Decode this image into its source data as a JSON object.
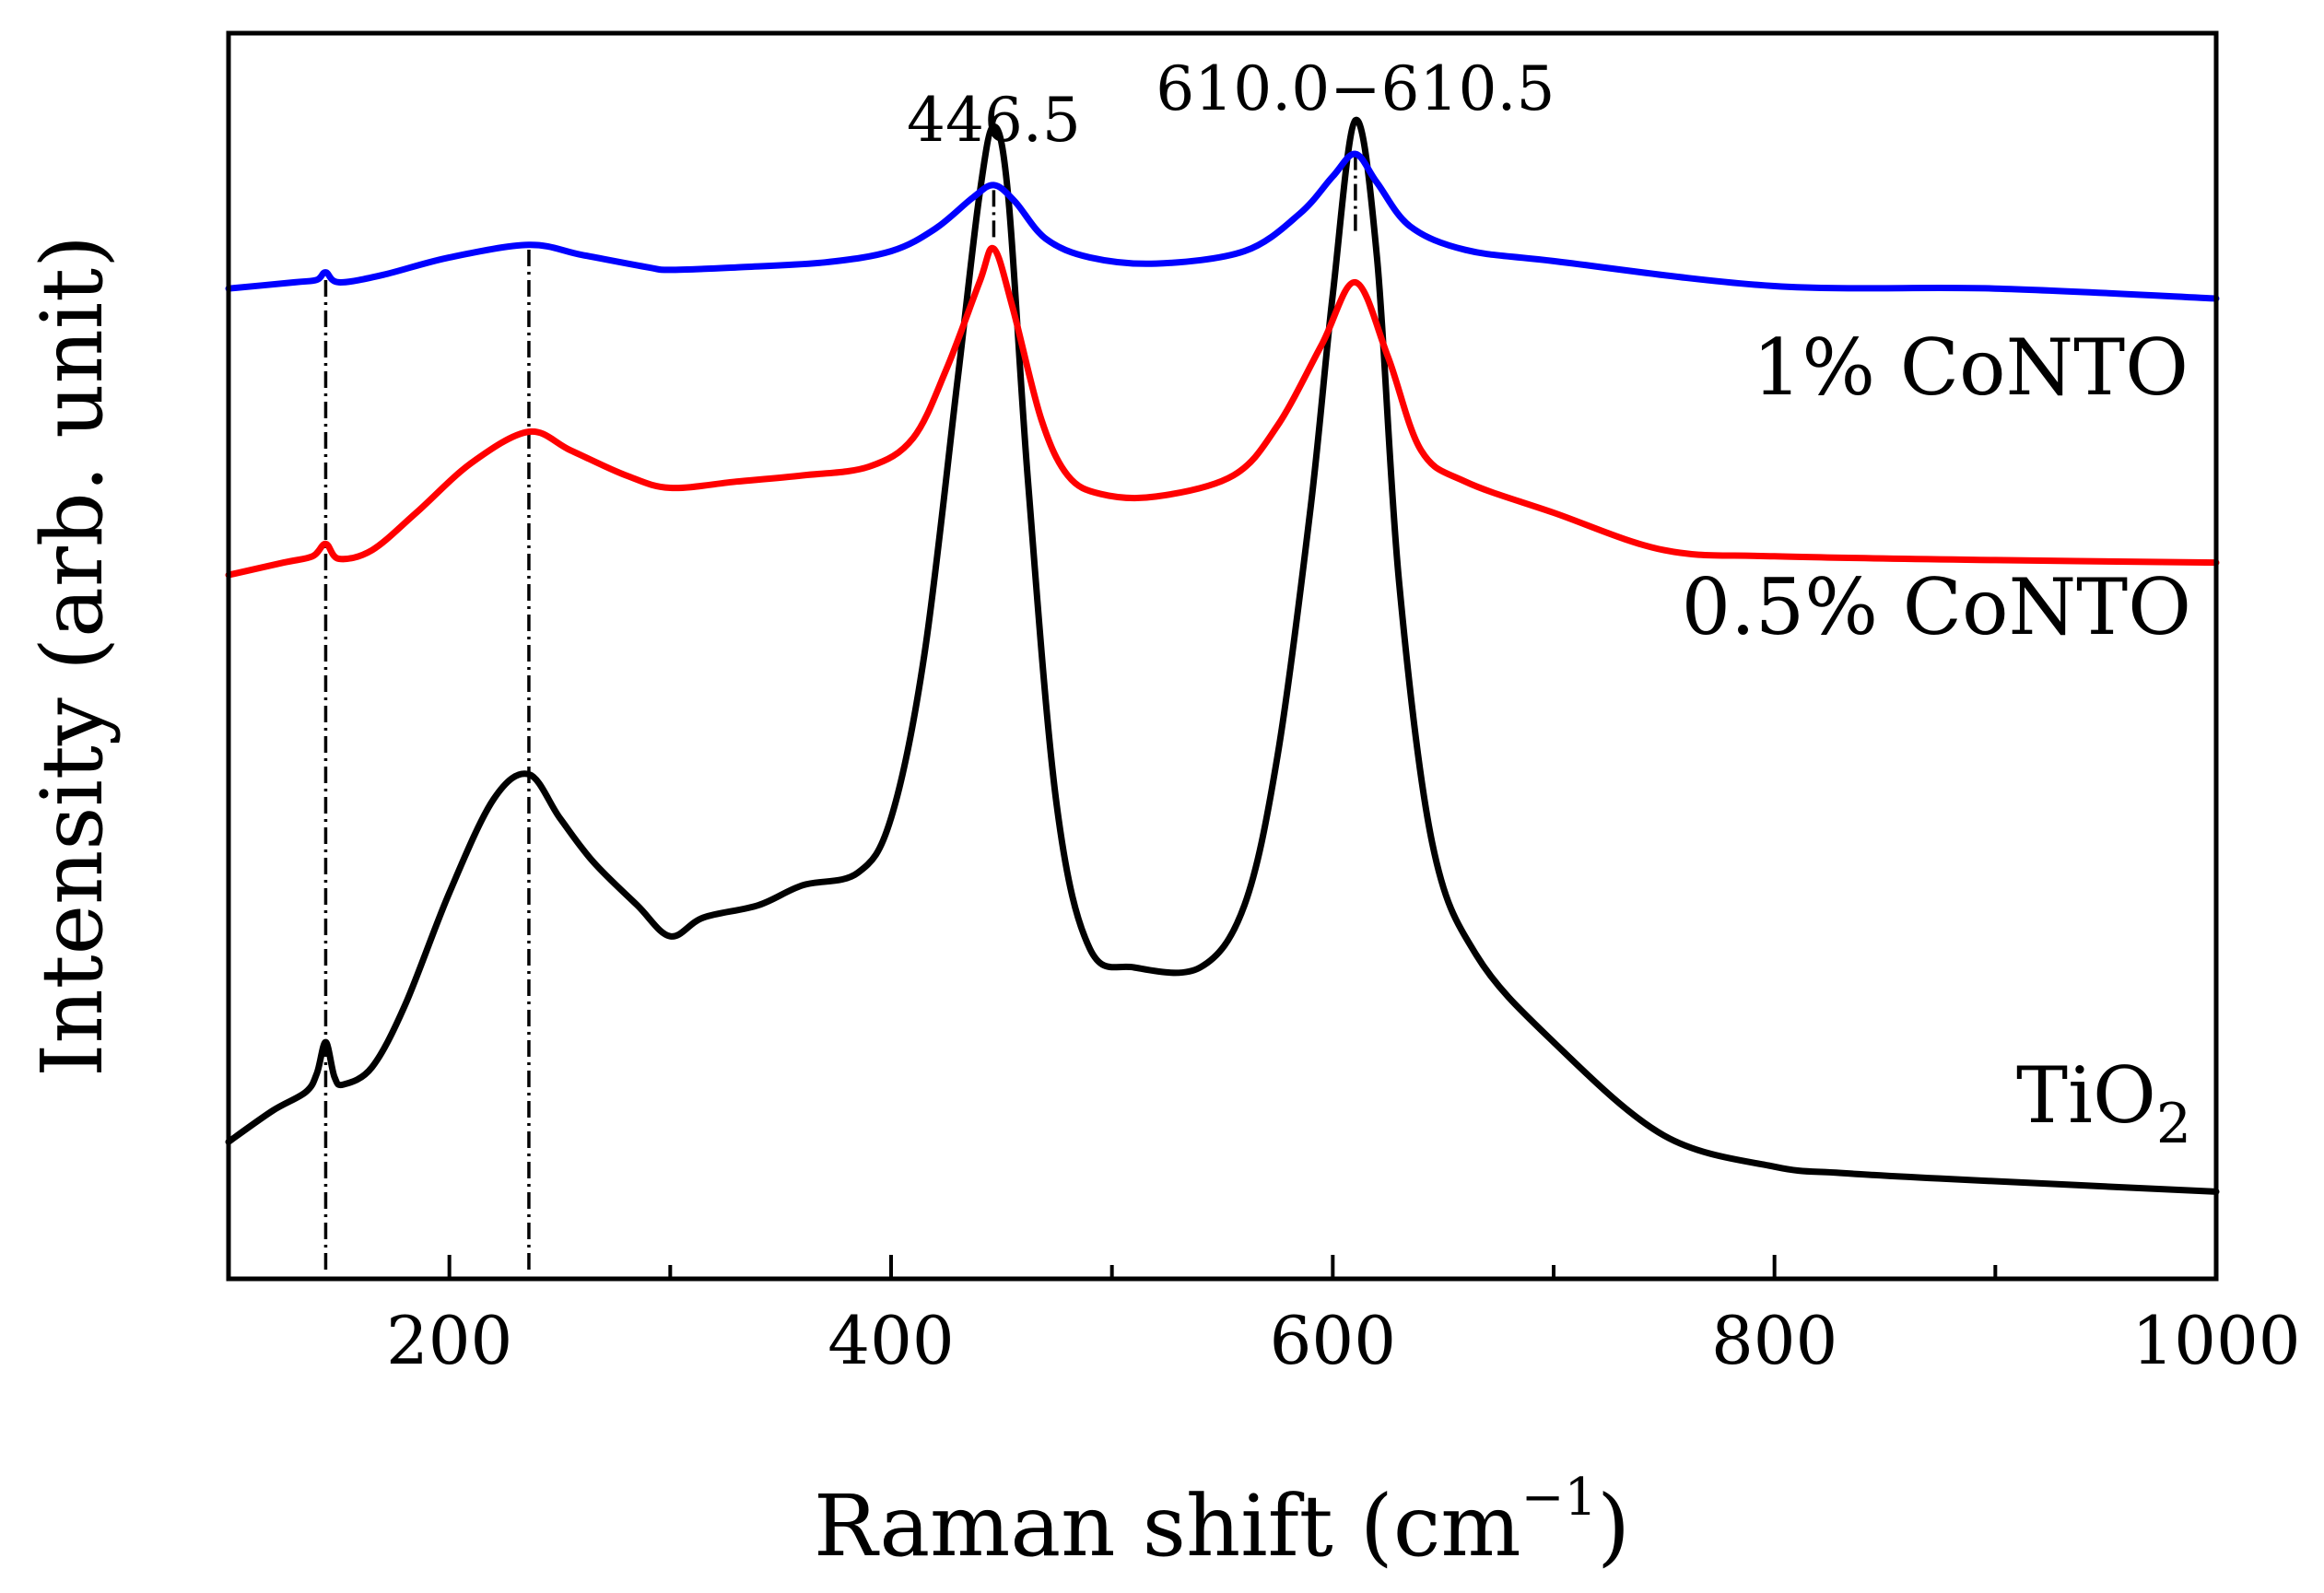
{
  "chart_data": {
    "type": "line",
    "title": "",
    "xlabel": "Raman shift (cm",
    "xlabel_sup": "−1",
    "xlabel_close": ")",
    "ylabel": "Intensity (arb. unit)",
    "xlim": [
      100,
      1000
    ],
    "ylim": [
      0,
      1
    ],
    "xticks": [
      200,
      400,
      600,
      800,
      1000
    ],
    "xtick_labels": [
      "200",
      "400",
      "600",
      "800",
      "1000"
    ],
    "minor_xticks": [
      300,
      500,
      700,
      900
    ],
    "grid": false,
    "y_ticklabels_shown": false,
    "annotations": [
      {
        "text": "446.5",
        "x": 446.5
      },
      {
        "text": "610.0−610.5",
        "x": 610.25
      }
    ],
    "reference_lines_x": [
      144,
      236,
      446.5,
      610.25
    ],
    "series": [
      {
        "name": "TiO2",
        "label_main": "TiO",
        "label_sub": "2",
        "color": "#000000",
        "x": [
          100,
          120,
          135,
          140,
          144,
          148,
          152,
          165,
          180,
          200,
          220,
          236,
          250,
          265,
          285,
          300,
          315,
          340,
          360,
          385,
          400,
          415,
          430,
          440,
          446.5,
          453,
          462,
          475,
          490,
          510,
          540,
          560,
          575,
          590,
          600,
          610.25,
          620,
          630,
          645,
          665,
          700,
          750,
          800,
          830,
          880,
          1000
        ],
        "y": [
          0.11,
          0.135,
          0.15,
          0.165,
          0.19,
          0.162,
          0.156,
          0.17,
          0.22,
          0.31,
          0.385,
          0.405,
          0.37,
          0.335,
          0.3,
          0.275,
          0.29,
          0.3,
          0.316,
          0.326,
          0.37,
          0.5,
          0.72,
          0.87,
          0.925,
          0.87,
          0.64,
          0.38,
          0.265,
          0.25,
          0.25,
          0.3,
          0.42,
          0.62,
          0.79,
          0.93,
          0.82,
          0.56,
          0.35,
          0.26,
          0.19,
          0.115,
          0.09,
          0.085,
          0.08,
          0.07
        ]
      },
      {
        "name": "0.5% CoNTO",
        "label_main": "0.5% CoNTO",
        "label_sub": "",
        "color": "#ff0000",
        "x": [
          100,
          125,
          138,
          144,
          150,
          165,
          185,
          210,
          236,
          255,
          280,
          300,
          330,
          360,
          390,
          410,
          425,
          440,
          446.5,
          455,
          468,
          480,
          495,
          520,
          555,
          575,
          595,
          610.25,
          625,
          640,
          660,
          700,
          750,
          800,
          900,
          1000
        ],
        "y": [
          0.565,
          0.575,
          0.58,
          0.59,
          0.578,
          0.585,
          0.615,
          0.655,
          0.68,
          0.665,
          0.645,
          0.635,
          0.64,
          0.645,
          0.652,
          0.675,
          0.73,
          0.8,
          0.827,
          0.78,
          0.69,
          0.645,
          0.63,
          0.628,
          0.645,
          0.685,
          0.75,
          0.8,
          0.74,
          0.665,
          0.64,
          0.615,
          0.585,
          0.58,
          0.577,
          0.575
        ]
      },
      {
        "name": "1% CoNTO",
        "label_main": "1% CoNTO",
        "label_sub": "",
        "color": "#0000ff",
        "x": [
          100,
          130,
          140,
          144,
          150,
          170,
          200,
          236,
          260,
          290,
          300,
          330,
          370,
          400,
          420,
          437,
          446.5,
          456,
          470,
          490,
          520,
          560,
          585,
          600,
          610.25,
          620,
          635,
          660,
          700,
          800,
          900,
          1000
        ],
        "y": [
          0.795,
          0.8,
          0.802,
          0.808,
          0.8,
          0.806,
          0.82,
          0.83,
          0.822,
          0.812,
          0.81,
          0.812,
          0.816,
          0.825,
          0.843,
          0.868,
          0.878,
          0.865,
          0.835,
          0.82,
          0.815,
          0.825,
          0.855,
          0.885,
          0.903,
          0.88,
          0.845,
          0.826,
          0.817,
          0.797,
          0.795,
          0.787
        ]
      }
    ]
  }
}
